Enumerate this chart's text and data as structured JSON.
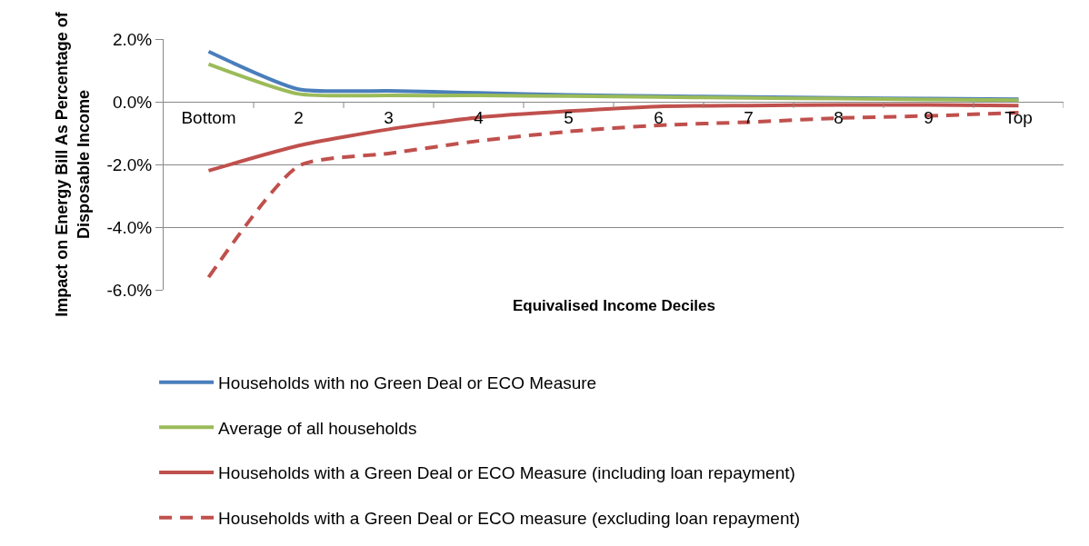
{
  "chart_data": {
    "type": "line",
    "xlabel": "Equivalised Income Deciles",
    "ylabel": "Impact on Energy Bill As Percentage of Disposable Income",
    "categories": [
      "Bottom",
      "2",
      "3",
      "4",
      "5",
      "6",
      "7",
      "8",
      "9",
      "Top"
    ],
    "series": [
      {
        "name": "Households with no Green Deal or ECO Measure",
        "color": "#4a7ebb",
        "values": [
          1.6,
          0.4,
          0.35,
          0.28,
          0.22,
          0.18,
          0.15,
          0.12,
          0.1,
          0.08
        ]
      },
      {
        "name": "Average of all households",
        "color": "#9bbb59",
        "values": [
          1.2,
          0.25,
          0.2,
          0.2,
          0.18,
          0.15,
          0.12,
          0.1,
          0.07,
          0.05
        ]
      },
      {
        "name": "Households with a Green Deal or ECO Measure (including loan repayment)",
        "color": "#c0504d",
        "values": [
          -2.2,
          -1.4,
          -0.88,
          -0.5,
          -0.3,
          -0.15,
          -0.12,
          -0.1,
          -0.1,
          -0.12
        ]
      },
      {
        "name": "Households with a Green Deal or ECO measure (excluding loan repayment)",
        "color": "#c0504d",
        "line_style": "dashed",
        "values": [
          -5.6,
          -2.05,
          -1.65,
          -1.25,
          -0.95,
          -0.75,
          -0.65,
          -0.52,
          -0.45,
          -0.35
        ]
      }
    ],
    "ylim": [
      -6,
      2
    ],
    "yticks": [
      {
        "value": 2,
        "label": "2.0%"
      },
      {
        "value": 0,
        "label": "0.0%"
      },
      {
        "value": -2,
        "label": "-2.0%"
      },
      {
        "value": -4,
        "label": "-4.0%"
      },
      {
        "value": -6,
        "label": "-6.0%"
      }
    ],
    "grid": "y",
    "legend": "bottom",
    "marker": "none"
  }
}
